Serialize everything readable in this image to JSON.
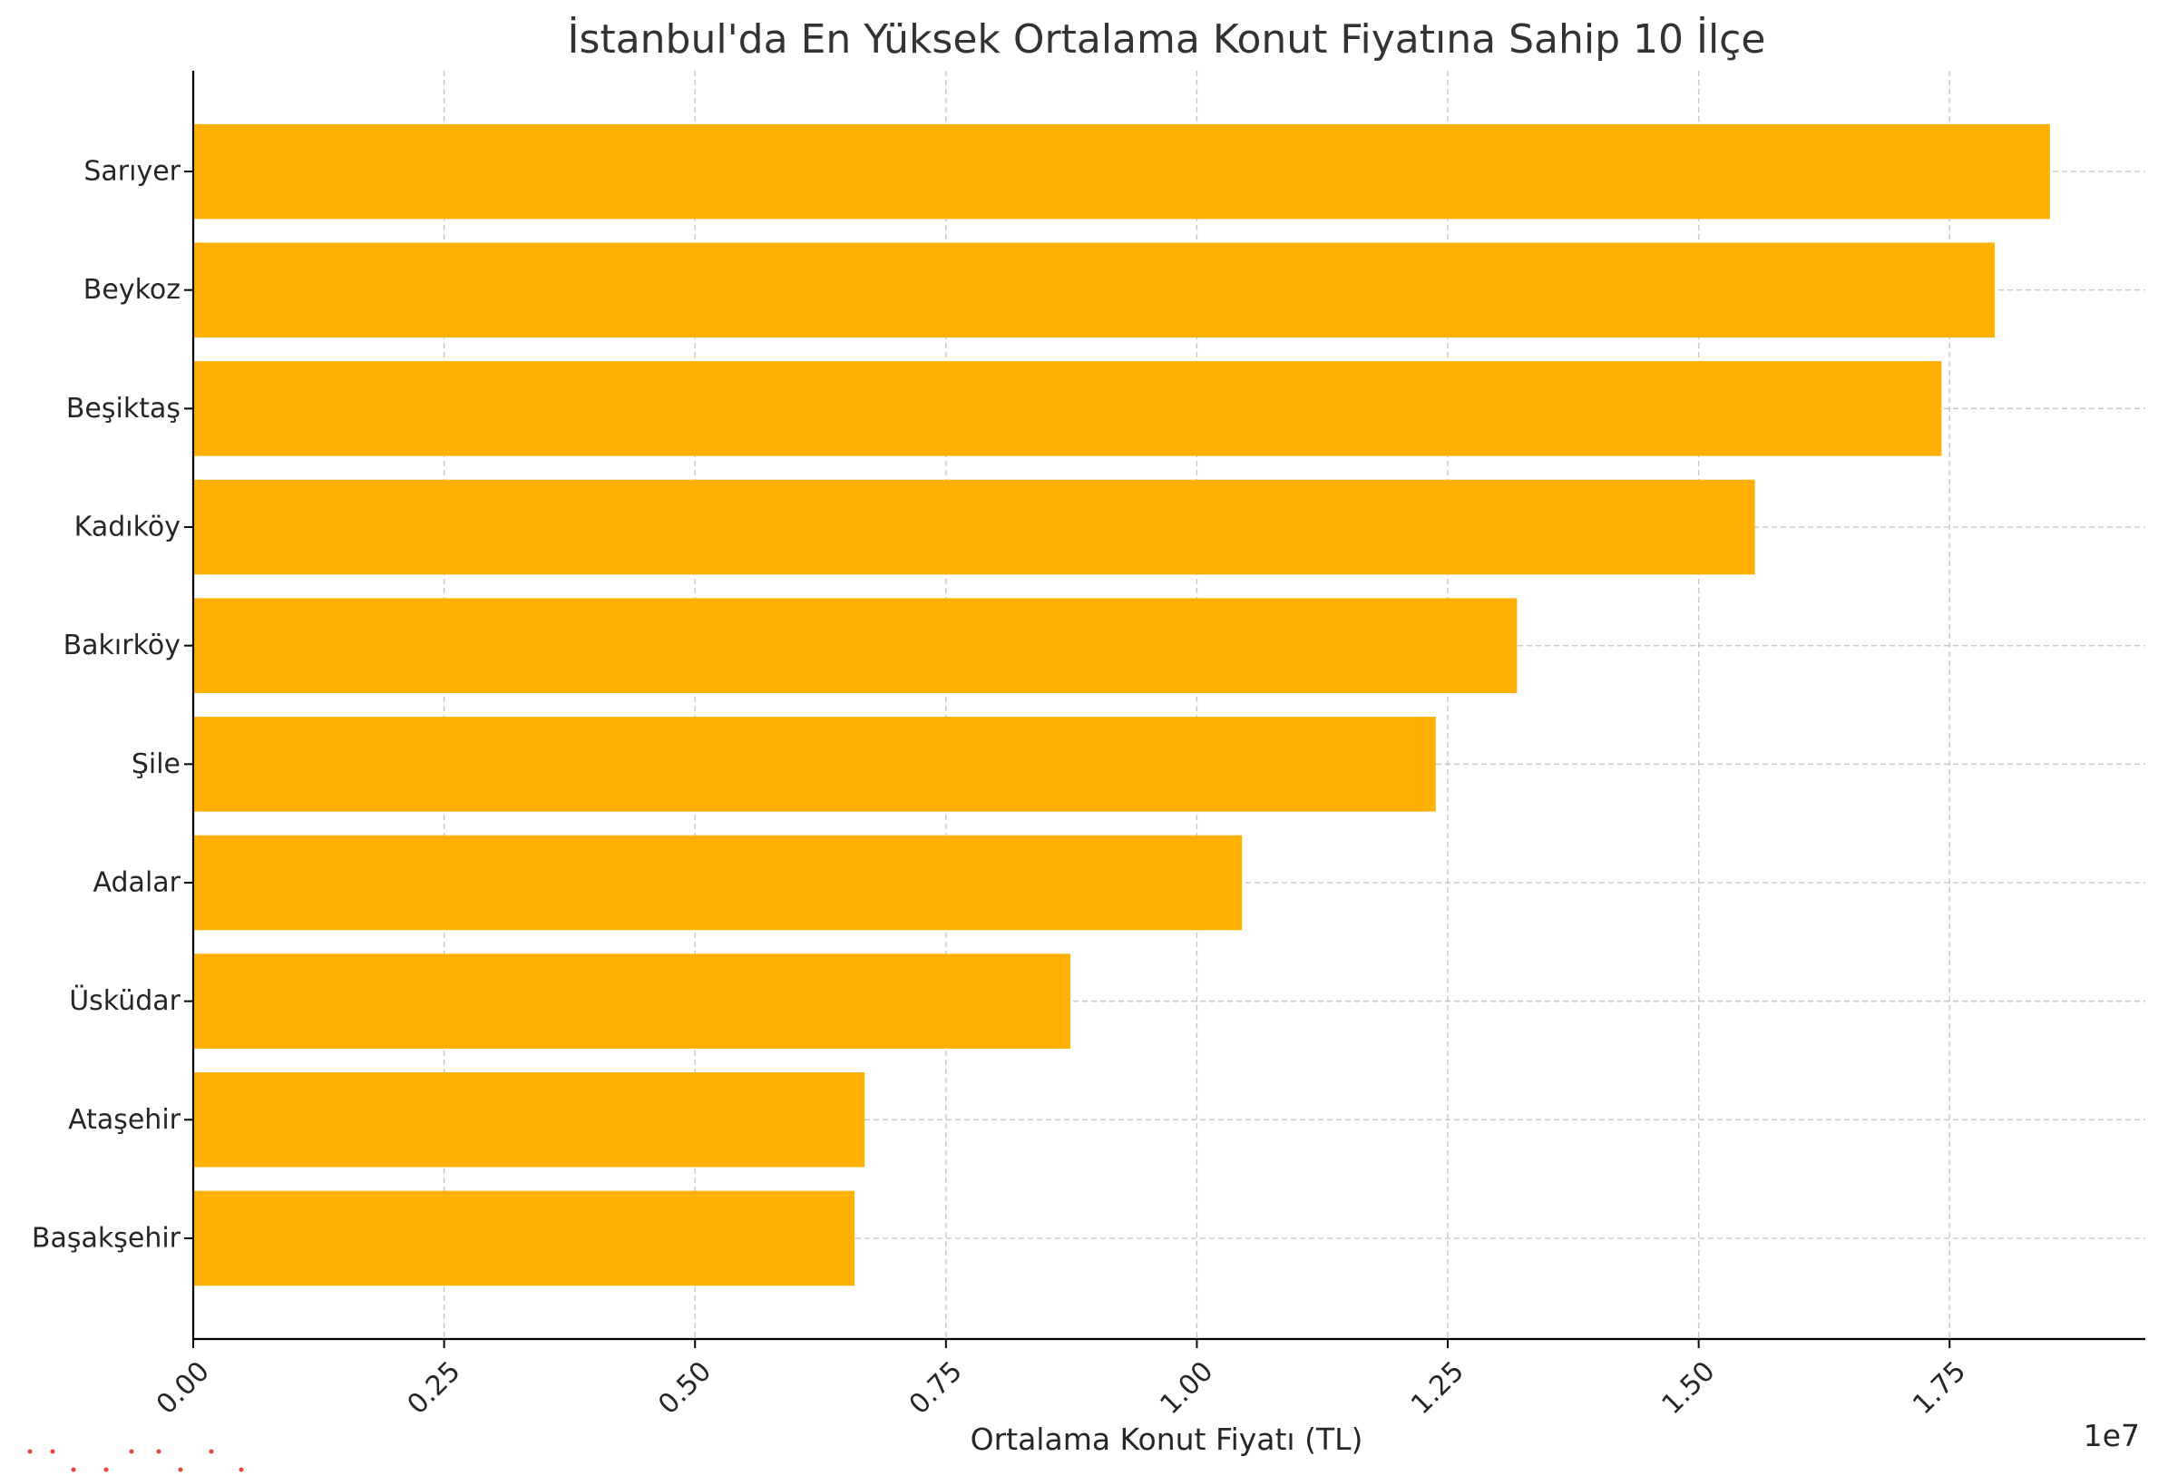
{
  "chart_data": {
    "type": "bar",
    "orientation": "horizontal",
    "title": "İstanbul'da En Yüksek Ortalama Konut Fiyatına Sahip 10 İlçe",
    "xlabel": "Ortalama Konut Fiyatı (TL)",
    "ylabel": "",
    "x_offset_label": "1e7",
    "categories": [
      "Sarıyer",
      "Beykoz",
      "Beşiktaş",
      "Kadıköy",
      "Bakırköy",
      "Şile",
      "Adalar",
      "Üsküdar",
      "Ataşehir",
      "Başakşehir"
    ],
    "values": [
      18500000,
      17950000,
      17420000,
      15560000,
      13190000,
      12380000,
      10450000,
      8740000,
      6690000,
      6590000
    ],
    "xlim": [
      0,
      19450000
    ],
    "x_ticks": [
      0,
      2500000,
      5000000,
      7500000,
      10000000,
      12500000,
      15000000,
      17500000
    ],
    "x_tick_labels": [
      "0.00",
      "0.25",
      "0.50",
      "0.75",
      "1.00",
      "1.25",
      "1.50",
      "1.75"
    ],
    "bar_color": "#FFB000",
    "grid": true,
    "grid_style": "dashed",
    "legend": "none"
  }
}
